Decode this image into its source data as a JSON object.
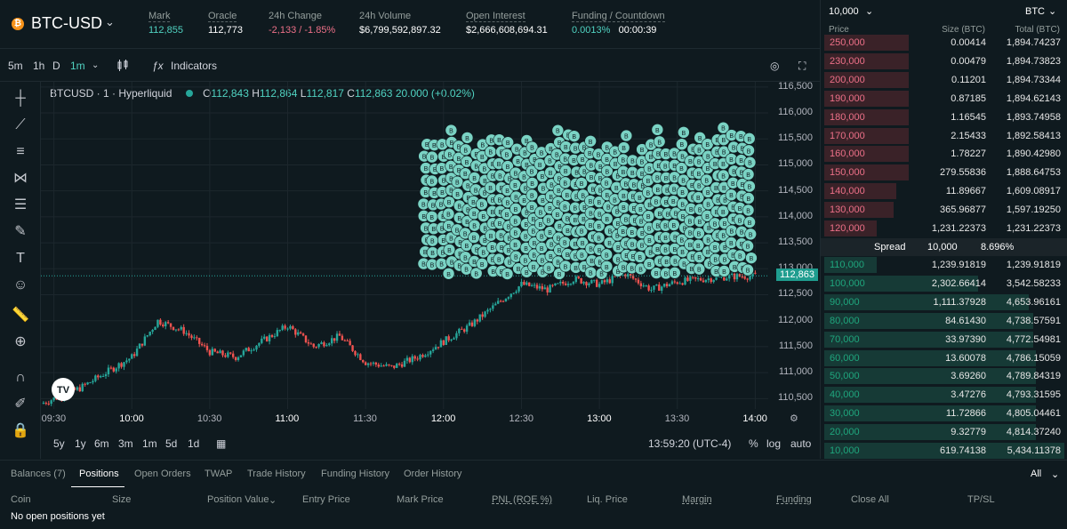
{
  "header": {
    "coin_icon": "₿",
    "coin": "BTC-USD",
    "stats": [
      {
        "label": "Mark",
        "value": "112,855",
        "underline": true
      },
      {
        "label": "Oracle",
        "value": "112,773",
        "underline": true
      },
      {
        "label": "24h Change",
        "value": "-2,133 / -1.85%",
        "tone": "negative"
      },
      {
        "label": "24h Volume",
        "value": "$6,799,592,897.32"
      },
      {
        "label": "Open Interest",
        "value": "$2,666,608,694.31",
        "underline": true
      },
      {
        "label": "Funding / Countdown",
        "value": "0.0013%",
        "value2": "00:00:39",
        "underline": true
      }
    ]
  },
  "toolbar": {
    "intervals": [
      "5m",
      "1h",
      "D",
      "1m"
    ],
    "active_interval": "1m",
    "indicators_label": "Indicators"
  },
  "chart": {
    "legend": {
      "symbol": "BTCUSD · 1 · Hyperliquid",
      "o_label": "O",
      "o": "112,843",
      "h_label": "H",
      "h": "112,864",
      "l_label": "L",
      "l": "112,817",
      "c_label": "C",
      "c": "112,863",
      "change": "20.000 (+0.02%)"
    },
    "last_price_tag": "112,863",
    "price_ticks": [
      "116,500",
      "116,000",
      "115,500",
      "115,000",
      "114,500",
      "114,000",
      "113,500",
      "113,000",
      "112,500",
      "112,000",
      "111,500",
      "111,000",
      "110,500"
    ],
    "time_ticks": [
      "09:30",
      "10:00",
      "10:30",
      "11:00",
      "11:30",
      "12:00",
      "12:30",
      "13:00",
      "13:30",
      "14:00"
    ],
    "bubble_label": "B",
    "range_buttons": [
      "5y",
      "1y",
      "6m",
      "3m",
      "1m",
      "5d",
      "1d"
    ],
    "clock": "13:59:20 (UTC-4)",
    "percent_label": "%",
    "log_label": "log",
    "auto_label": "auto",
    "colors": {
      "up": "#26a69a",
      "down": "#ef5350",
      "bubble": "#7ad3c4"
    }
  },
  "chart_data": {
    "type": "candlestick",
    "x_range": [
      "09:25",
      "14:05"
    ],
    "ylim": [
      110300,
      116600
    ],
    "close_series_approx": [
      [
        "09:25",
        110400
      ],
      [
        "09:40",
        110700
      ],
      [
        "09:50",
        111000
      ],
      [
        "10:00",
        111300
      ],
      [
        "10:10",
        112000
      ],
      [
        "10:20",
        111800
      ],
      [
        "10:30",
        111400
      ],
      [
        "10:40",
        111300
      ],
      [
        "10:50",
        111600
      ],
      [
        "11:00",
        111900
      ],
      [
        "11:10",
        111500
      ],
      [
        "11:20",
        111700
      ],
      [
        "11:30",
        111200
      ],
      [
        "11:40",
        111100
      ],
      [
        "11:50",
        111300
      ],
      [
        "12:00",
        111600
      ],
      [
        "12:10",
        111900
      ],
      [
        "12:20",
        112300
      ],
      [
        "12:30",
        112700
      ],
      [
        "12:40",
        112600
      ],
      [
        "12:50",
        112800
      ],
      [
        "13:00",
        112700
      ],
      [
        "13:10",
        112900
      ],
      [
        "13:20",
        112600
      ],
      [
        "13:30",
        112750
      ],
      [
        "13:40",
        112800
      ],
      [
        "13:50",
        112850
      ],
      [
        "14:00",
        112863
      ]
    ]
  },
  "orderbook": {
    "size_select": "10,000",
    "unit_select": "BTC",
    "headers": {
      "price": "Price",
      "size": "Size (BTC)",
      "total": "Total (BTC)"
    },
    "asks": [
      {
        "price": "250,000",
        "size": "0.00414",
        "total": "1,894.74237",
        "depth": 0.35
      },
      {
        "price": "230,000",
        "size": "0.00479",
        "total": "1,894.73823",
        "depth": 0.35
      },
      {
        "price": "200,000",
        "size": "0.11201",
        "total": "1,894.73344",
        "depth": 0.35
      },
      {
        "price": "190,000",
        "size": "0.87185",
        "total": "1,894.62143",
        "depth": 0.35
      },
      {
        "price": "180,000",
        "size": "1.16545",
        "total": "1,893.74958",
        "depth": 0.35
      },
      {
        "price": "170,000",
        "size": "2.15433",
        "total": "1,892.58413",
        "depth": 0.35
      },
      {
        "price": "160,000",
        "size": "1.78227",
        "total": "1,890.42980",
        "depth": 0.35
      },
      {
        "price": "150,000",
        "size": "279.55836",
        "total": "1,888.64753",
        "depth": 0.35
      },
      {
        "price": "140,000",
        "size": "11.89667",
        "total": "1,609.08917",
        "depth": 0.3
      },
      {
        "price": "130,000",
        "size": "365.96877",
        "total": "1,597.19250",
        "depth": 0.29
      },
      {
        "price": "120,000",
        "size": "1,231.22373",
        "total": "1,231.22373",
        "depth": 0.22
      }
    ],
    "spread": {
      "label": "Spread",
      "value": "10,000",
      "pct": "8.696%"
    },
    "bids": [
      {
        "price": "110,000",
        "size": "1,239.91819",
        "total": "1,239.91819",
        "depth": 0.22
      },
      {
        "price": "100,000",
        "size": "2,302.66414",
        "total": "3,542.58233",
        "depth": 0.64
      },
      {
        "price": "90,000",
        "size": "1,111.37928",
        "total": "4,653.96161",
        "depth": 0.85
      },
      {
        "price": "80,000",
        "size": "84.61430",
        "total": "4,738.57591",
        "depth": 0.87
      },
      {
        "price": "70,000",
        "size": "33.97390",
        "total": "4,772.54981",
        "depth": 0.87
      },
      {
        "price": "60,000",
        "size": "13.60078",
        "total": "4,786.15059",
        "depth": 0.88
      },
      {
        "price": "50,000",
        "size": "3.69260",
        "total": "4,789.84319",
        "depth": 0.88
      },
      {
        "price": "40,000",
        "size": "3.47276",
        "total": "4,793.31595",
        "depth": 0.88
      },
      {
        "price": "30,000",
        "size": "11.72866",
        "total": "4,805.04461",
        "depth": 0.88
      },
      {
        "price": "20,000",
        "size": "9.32779",
        "total": "4,814.37240",
        "depth": 0.88
      },
      {
        "price": "10,000",
        "size": "619.74138",
        "total": "5,434.11378",
        "depth": 1.0
      }
    ]
  },
  "bottom": {
    "tabs": [
      "Balances (7)",
      "Positions",
      "Open Orders",
      "TWAP",
      "Trade History",
      "Funding History",
      "Order History"
    ],
    "active_tab": "Positions",
    "filter": "All",
    "columns": [
      "Coin",
      "Size",
      "Position Value",
      "Entry Price",
      "Mark Price",
      "PNL (ROE %)",
      "Liq. Price",
      "Margin",
      "Funding",
      "Close All",
      "TP/SL"
    ],
    "empty_message": "No open positions yet"
  }
}
